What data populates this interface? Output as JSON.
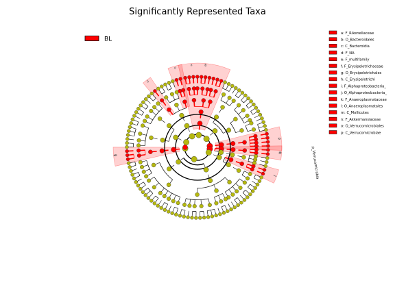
{
  "title": "Significantly Represented Taxa",
  "groups": [
    {
      "name": "BL",
      "color": "#ff0000"
    }
  ],
  "colors": {
    "enriched_node": "#ff0000",
    "neutral_node": "#b5b80f",
    "node_stroke": "#333333",
    "highlight": "#ff0000"
  },
  "clades": [
    {
      "key": "a",
      "label": "a: F_Rikenellaceae"
    },
    {
      "key": "b",
      "label": "b: O_Bacteroidales"
    },
    {
      "key": "c",
      "label": "c: C_Bacteroidia"
    },
    {
      "key": "d",
      "label": "d: F_NA"
    },
    {
      "key": "e",
      "label": "e: F_multifamily"
    },
    {
      "key": "f",
      "label": "f: F_Erysipelotrichaceae"
    },
    {
      "key": "g",
      "label": "g: O_Erysipelotrichales"
    },
    {
      "key": "h",
      "label": "h: C_Erysipelotrichi"
    },
    {
      "key": "i",
      "label": "i: F_Alphaproteobacteria_"
    },
    {
      "key": "j",
      "label": "j: O_Alphaproteobacteria_"
    },
    {
      "key": "k",
      "label": "k: F_Anaeroplasmataceae"
    },
    {
      "key": "l",
      "label": "l: O_Anaeroplasmatales"
    },
    {
      "key": "m",
      "label": "m: C_Mollicutes"
    },
    {
      "key": "n",
      "label": "n: F_Akkermansiaceae"
    },
    {
      "key": "o",
      "label": "o: O_Verrucomicrobiales"
    },
    {
      "key": "p",
      "label": "p: C_Verrucomicrobiae"
    }
  ],
  "outer_label": "p_Verrucomicrobia"
}
